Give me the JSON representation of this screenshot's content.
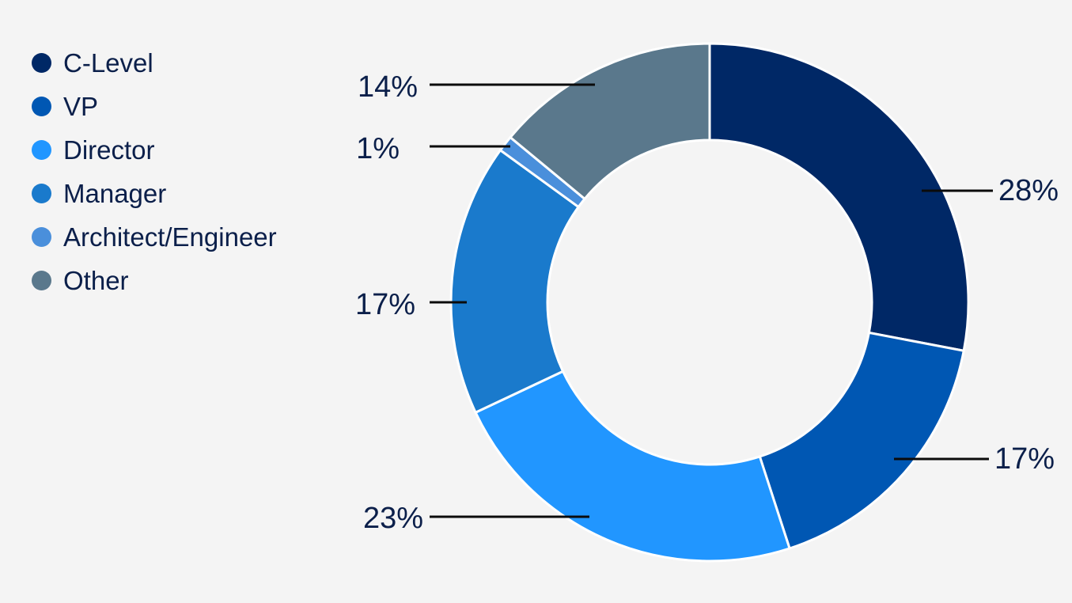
{
  "chart_data": {
    "type": "pie",
    "donut": true,
    "categories": [
      "C-Level",
      "VP",
      "Director",
      "Manager",
      "Architect/Engineer",
      "Other"
    ],
    "values": [
      28,
      17,
      23,
      17,
      1,
      14
    ],
    "value_labels": [
      "28%",
      "17%",
      "23%",
      "17%",
      "1%",
      "14%"
    ],
    "colors": [
      "#002866",
      "#0057b3",
      "#2196ff",
      "#1a7acc",
      "#4a8fdb",
      "#5a788c"
    ],
    "legend_position": "top-left",
    "title": ""
  }
}
